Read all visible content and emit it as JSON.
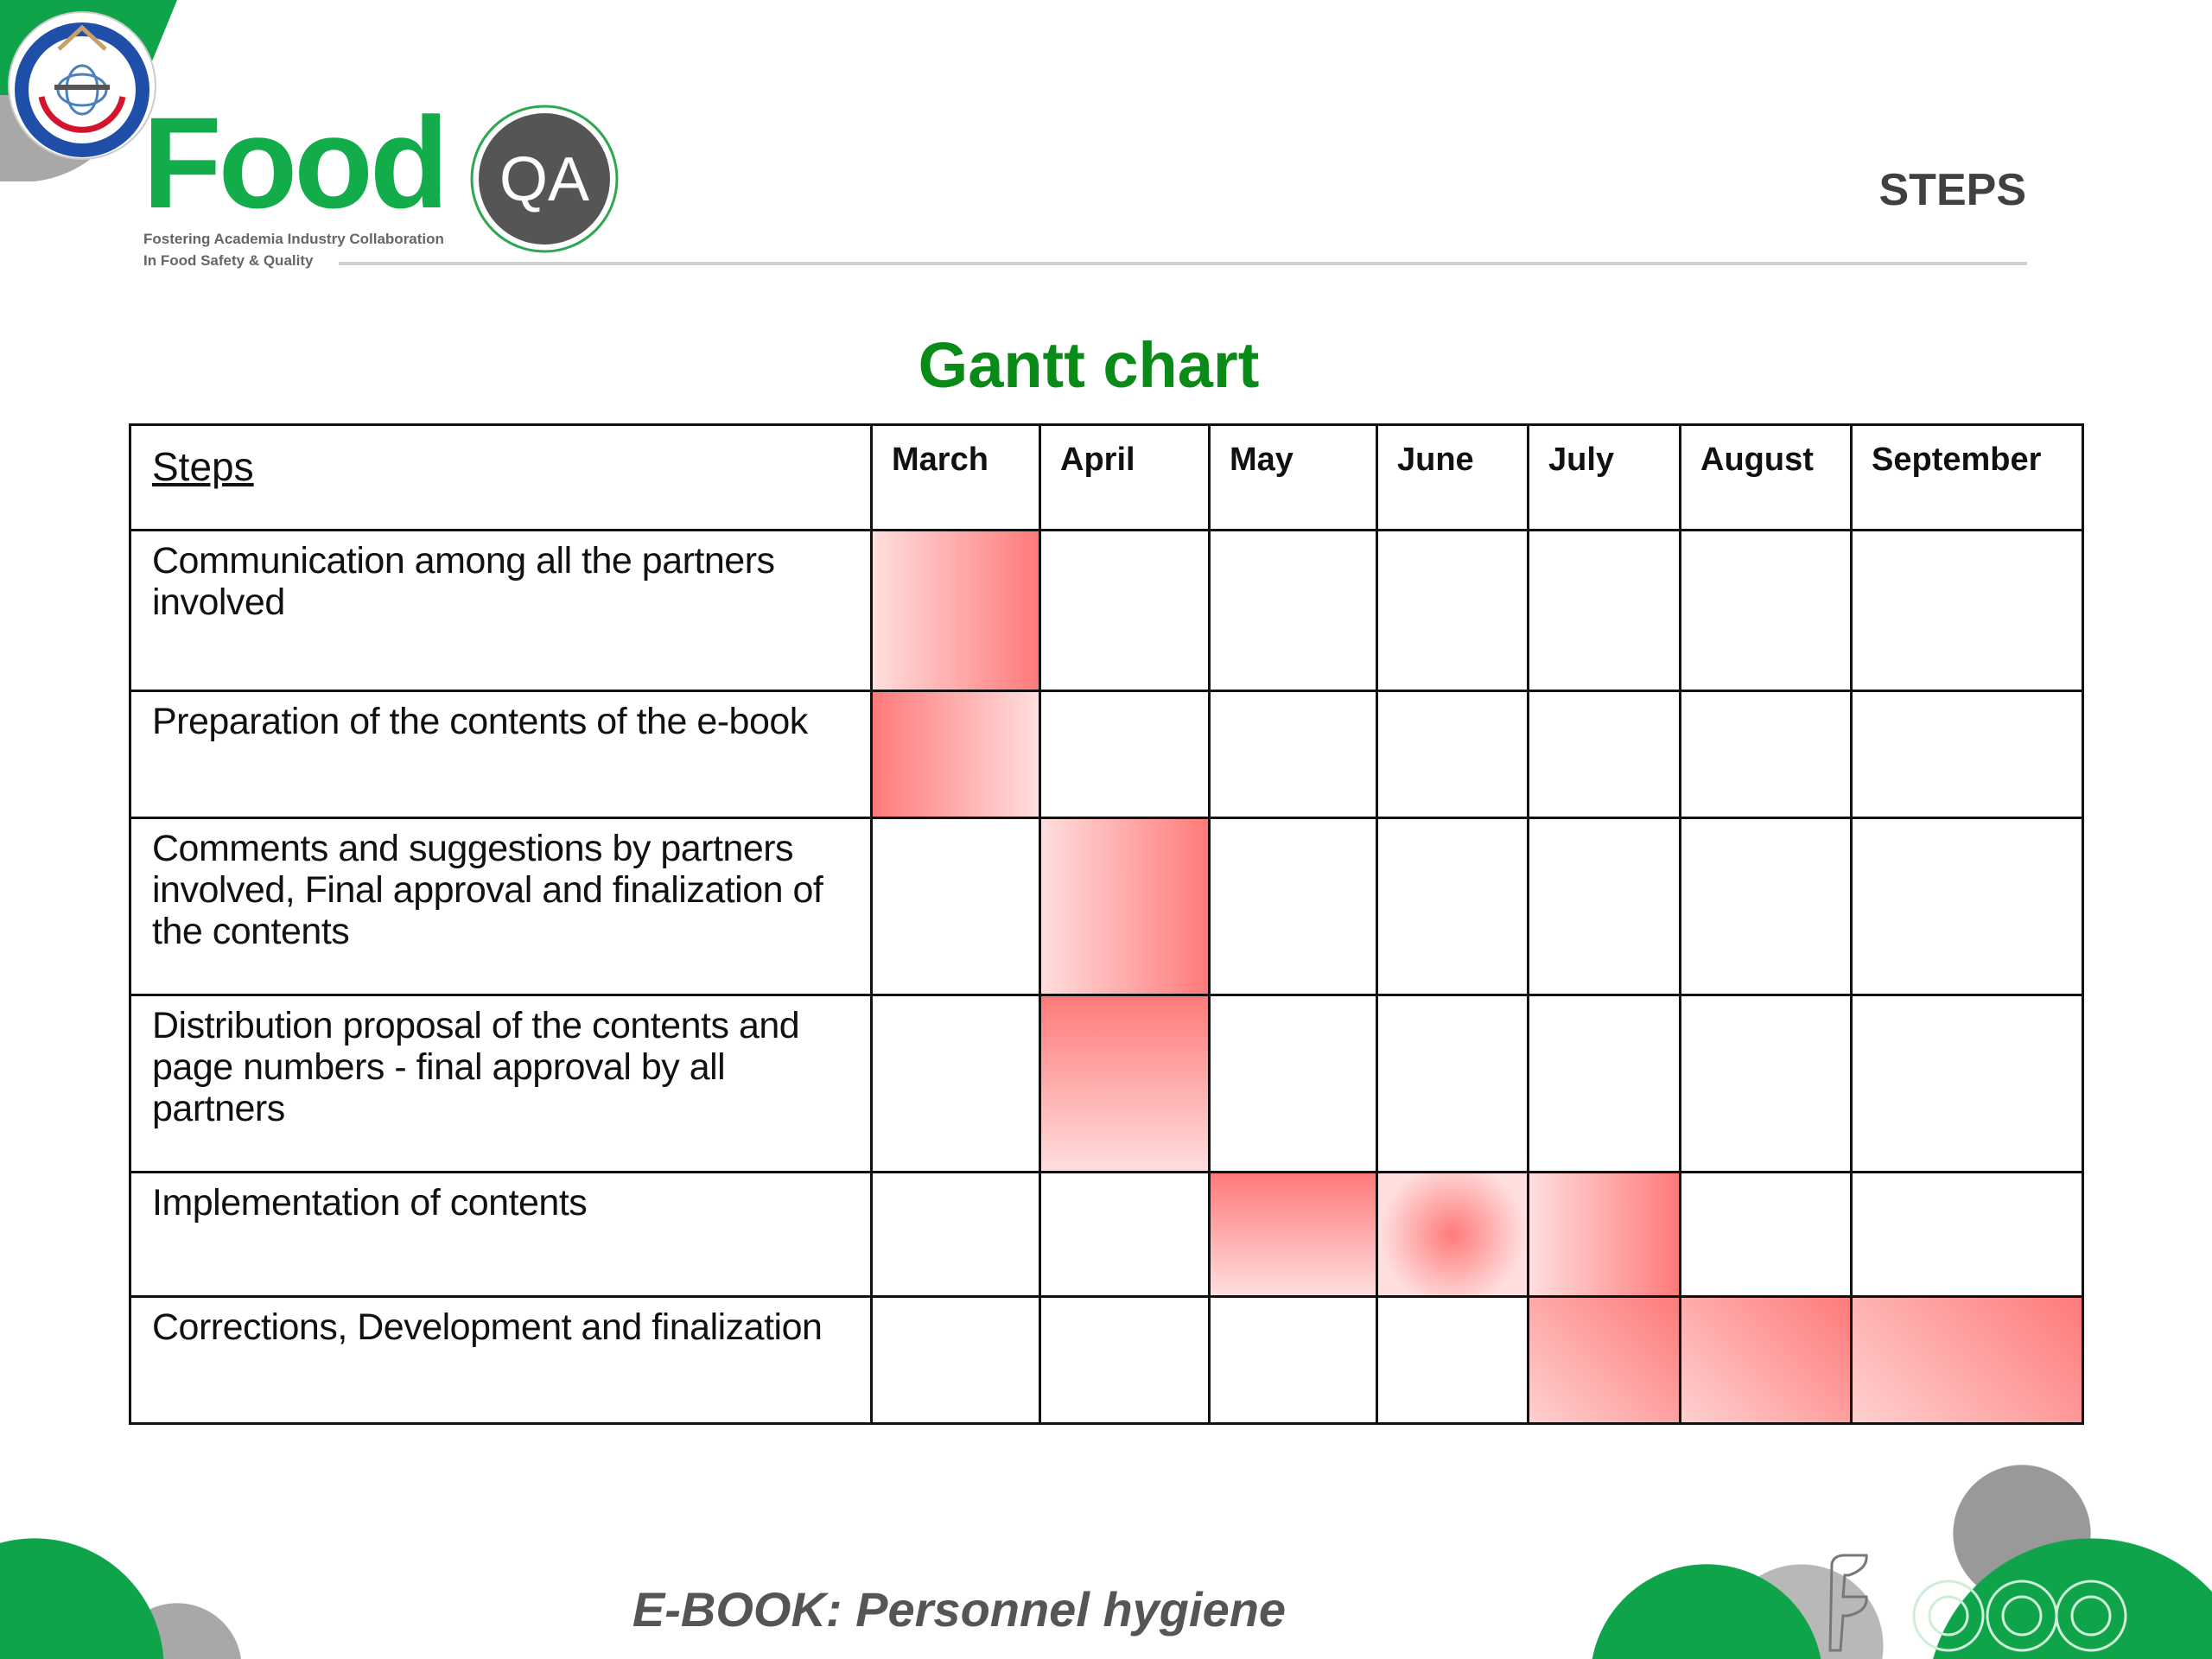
{
  "logo": {
    "brand": "Food",
    "badge": "QA",
    "tagline_1": "Fostering Academia Industry Collaboration",
    "tagline_2": "In Food Safety & Quality"
  },
  "header": {
    "title": "STEPS"
  },
  "chart_title": "Gantt chart",
  "table": {
    "steps_header": "Steps",
    "months": [
      "March",
      "April",
      "May",
      "June",
      "July",
      "August",
      "September"
    ],
    "rows": [
      {
        "step": "Communication among all the partners involved",
        "active": [
          1,
          0,
          0,
          0,
          0,
          0,
          0
        ],
        "fills": [
          "f-right"
        ]
      },
      {
        "step": "Preparation of the contents of the e-book",
        "active": [
          1,
          0,
          0,
          0,
          0,
          0,
          0
        ],
        "fills": [
          "f-left"
        ]
      },
      {
        "step": "Comments and suggestions by partners involved, Final approval and finalization of the contents",
        "active": [
          0,
          1,
          0,
          0,
          0,
          0,
          0
        ],
        "fills": [
          "f-right"
        ]
      },
      {
        "step": "Distribution proposal of the contents and page numbers - final approval by all partners",
        "active": [
          0,
          1,
          0,
          0,
          0,
          0,
          0
        ],
        "fills": [
          "f-down"
        ]
      },
      {
        "step": "Implementation of contents",
        "active": [
          0,
          0,
          1,
          1,
          1,
          0,
          0
        ],
        "fills": [
          "f-down",
          "f-radial",
          "f-right"
        ]
      },
      {
        "step": "Corrections, Development  and finalization",
        "active": [
          0,
          0,
          0,
          0,
          1,
          1,
          1
        ],
        "fills": [
          "f-diag",
          "f-diag",
          "f-diag"
        ]
      }
    ]
  },
  "colors": {
    "accent_green": "#12ad4a",
    "title_green": "#0a8a16",
    "bar_red": "#ff7a7a"
  },
  "footer": {
    "title": "E-BOOK: Personnel hygiene"
  }
}
